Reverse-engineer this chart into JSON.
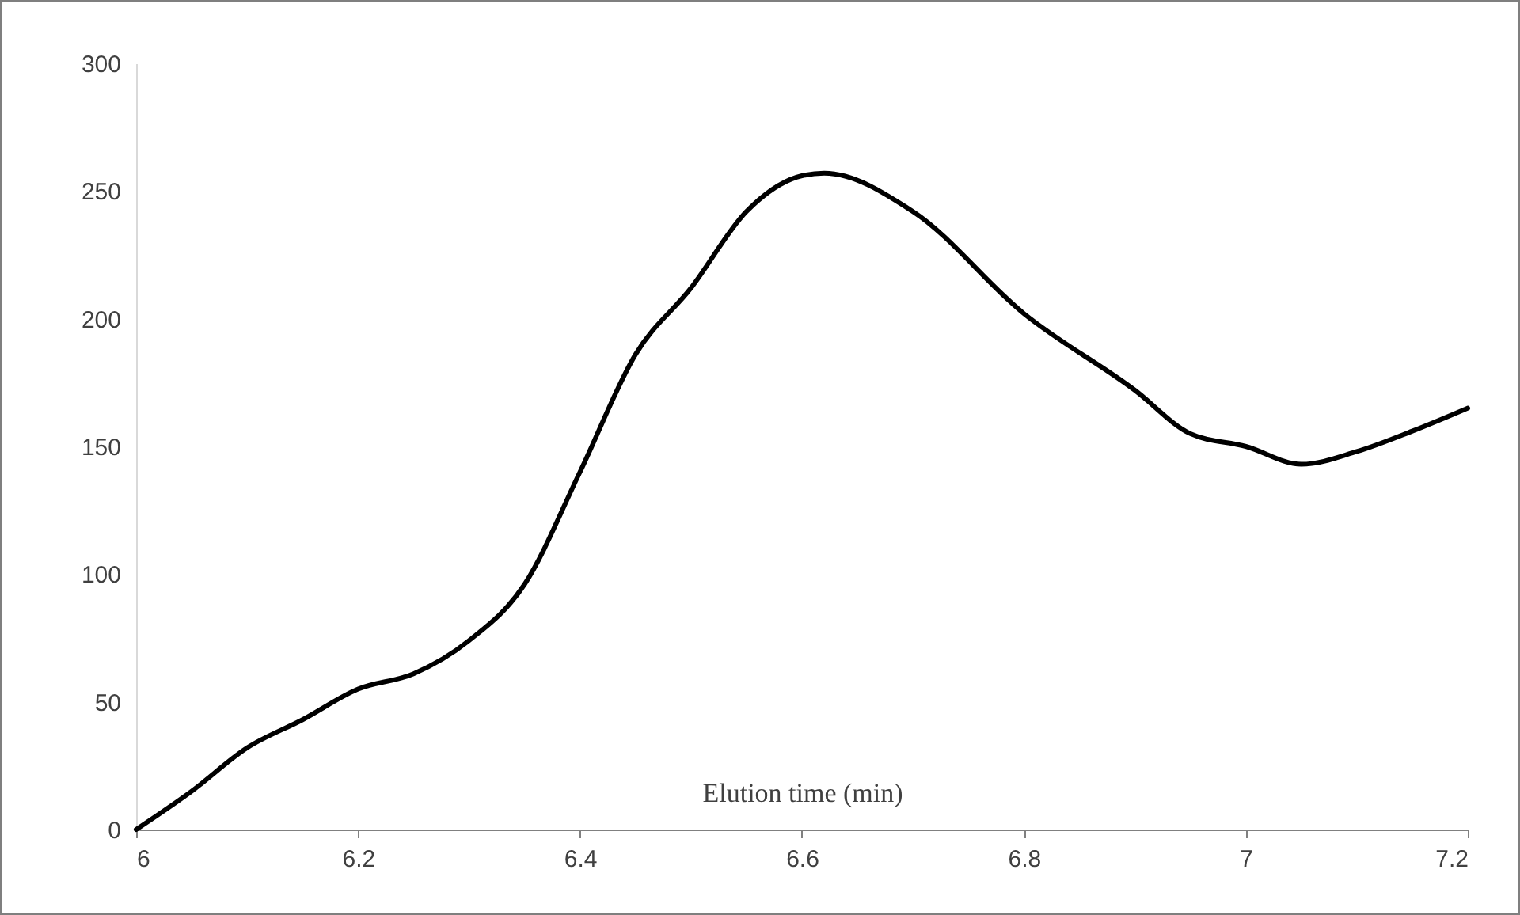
{
  "chart_data": {
    "type": "line",
    "xlabel": "Elution time (min)",
    "x": [
      6.0,
      6.05,
      6.1,
      6.15,
      6.2,
      6.25,
      6.3,
      6.35,
      6.4,
      6.45,
      6.5,
      6.55,
      6.6,
      6.62,
      6.7,
      6.8,
      6.9,
      6.95,
      7.0,
      7.05,
      7.1,
      7.15,
      7.2
    ],
    "series": [
      {
        "color": "#000000",
        "values": [
          0,
          15,
          32,
          43,
          55,
          61,
          74,
          96,
          140,
          186,
          212,
          242,
          256,
          257,
          242,
          202,
          172,
          155,
          150,
          143,
          148,
          156,
          165
        ]
      }
    ],
    "xlim": [
      6,
      7.2
    ],
    "xticks": [
      6,
      6.2,
      6.4,
      6.6,
      6.8,
      7,
      7.2
    ],
    "ylim": [
      0,
      300
    ],
    "yticks": [
      0,
      50,
      100,
      150,
      200,
      250,
      300
    ],
    "grid": false,
    "marker": "none",
    "line_style": "solid"
  }
}
